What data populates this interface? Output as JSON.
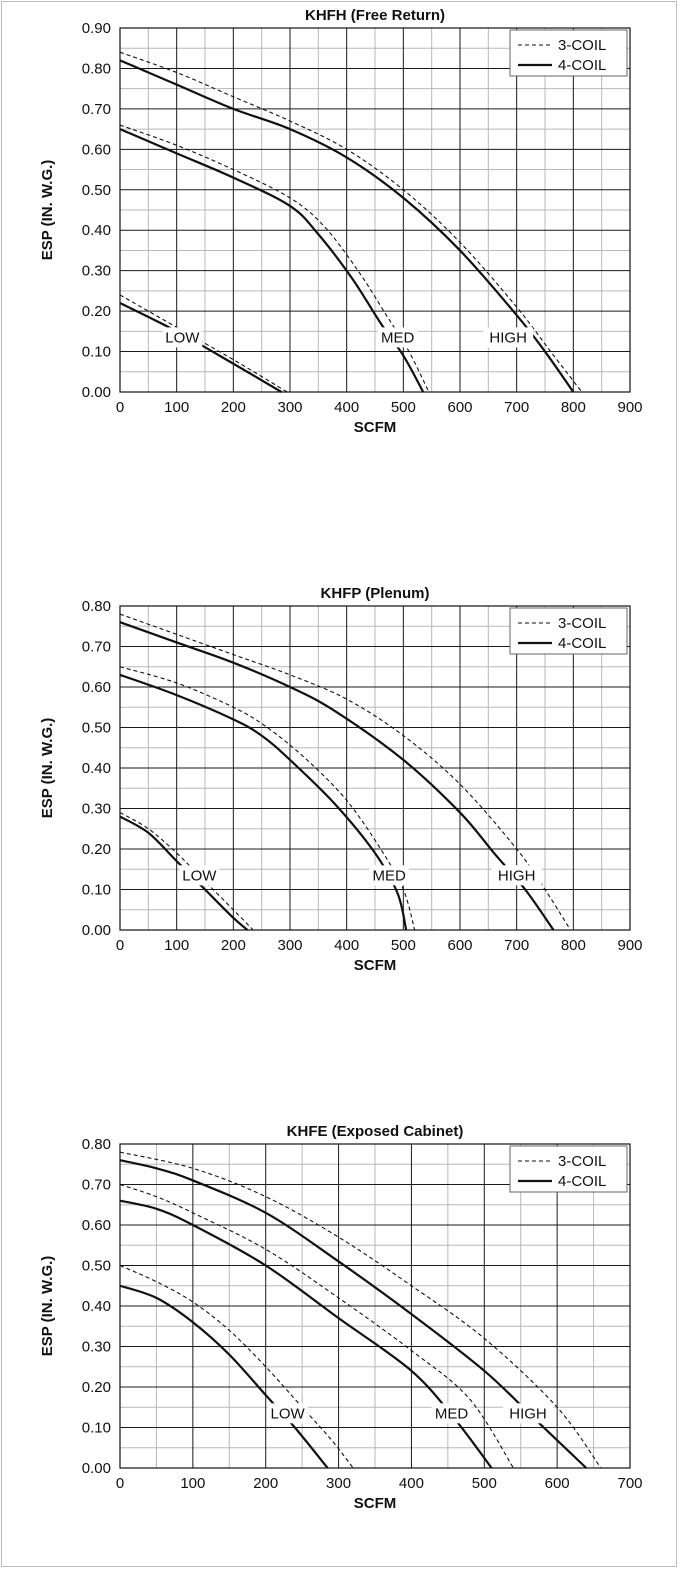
{
  "chart_data": [
    {
      "type": "line",
      "title": "KHFH (Free Return)",
      "xlabel": "SCFM",
      "ylabel": "ESP (IN. W.G.)",
      "xlim": [
        0,
        900
      ],
      "ylim": [
        0,
        0.9
      ],
      "x_ticks": [
        "0",
        "100",
        "200",
        "300",
        "400",
        "500",
        "600",
        "700",
        "800",
        "900"
      ],
      "y_ticks": [
        "0.00",
        "0.10",
        "0.20",
        "0.30",
        "0.40",
        "0.50",
        "0.60",
        "0.70",
        "0.80",
        "0.90"
      ],
      "grid": true,
      "legend": {
        "position": "top-right",
        "entries": [
          "3-COIL",
          "4-COIL"
        ]
      },
      "series": [
        {
          "name": "3-COIL",
          "speed": "HIGH",
          "x": [
            0,
            100,
            200,
            300,
            400,
            500,
            600,
            700,
            760,
            815
          ],
          "y": [
            0.84,
            0.79,
            0.73,
            0.67,
            0.6,
            0.5,
            0.37,
            0.21,
            0.1,
            0.0
          ]
        },
        {
          "name": "4-COIL",
          "speed": "HIGH",
          "x": [
            0,
            100,
            200,
            300,
            400,
            500,
            600,
            700,
            750,
            800
          ],
          "y": [
            0.82,
            0.76,
            0.7,
            0.65,
            0.58,
            0.48,
            0.35,
            0.19,
            0.1,
            0.0
          ]
        },
        {
          "name": "3-COIL",
          "speed": "MED",
          "x": [
            0,
            100,
            200,
            300,
            360,
            420,
            470,
            510,
            545
          ],
          "y": [
            0.66,
            0.61,
            0.55,
            0.48,
            0.41,
            0.3,
            0.19,
            0.1,
            0.0
          ]
        },
        {
          "name": "4-COIL",
          "speed": "MED",
          "x": [
            0,
            100,
            200,
            300,
            350,
            410,
            460,
            500,
            535
          ],
          "y": [
            0.65,
            0.59,
            0.53,
            0.46,
            0.39,
            0.28,
            0.17,
            0.09,
            0.0
          ]
        },
        {
          "name": "3-COIL",
          "speed": "LOW",
          "x": [
            0,
            100,
            200,
            295
          ],
          "y": [
            0.24,
            0.16,
            0.08,
            0.0
          ]
        },
        {
          "name": "4-COIL",
          "speed": "LOW",
          "x": [
            0,
            100,
            200,
            285
          ],
          "y": [
            0.22,
            0.15,
            0.07,
            0.0
          ]
        }
      ],
      "annotations": [
        {
          "text": "LOW",
          "x": 110,
          "y": 0.135
        },
        {
          "text": "MED",
          "x": 490,
          "y": 0.135
        },
        {
          "text": "HIGH",
          "x": 685,
          "y": 0.135
        }
      ]
    },
    {
      "type": "line",
      "title": "KHFP (Plenum)",
      "xlabel": "SCFM",
      "ylabel": "ESP (IN. W.G.)",
      "xlim": [
        0,
        900
      ],
      "ylim": [
        0,
        0.8
      ],
      "x_ticks": [
        "0",
        "100",
        "200",
        "300",
        "400",
        "500",
        "600",
        "700",
        "800",
        "900"
      ],
      "y_ticks": [
        "0.00",
        "0.10",
        "0.20",
        "0.30",
        "0.40",
        "0.50",
        "0.60",
        "0.70",
        "0.80"
      ],
      "grid": true,
      "legend": {
        "position": "top-right",
        "entries": [
          "3-COIL",
          "4-COIL"
        ]
      },
      "series": [
        {
          "name": "3-COIL",
          "speed": "HIGH",
          "x": [
            0,
            100,
            200,
            300,
            400,
            500,
            600,
            700,
            750,
            795
          ],
          "y": [
            0.78,
            0.73,
            0.68,
            0.63,
            0.57,
            0.48,
            0.36,
            0.2,
            0.1,
            0.0
          ]
        },
        {
          "name": "4-COIL",
          "speed": "HIGH",
          "x": [
            0,
            100,
            200,
            300,
            380,
            500,
            600,
            660,
            715,
            765
          ],
          "y": [
            0.76,
            0.71,
            0.66,
            0.6,
            0.54,
            0.42,
            0.29,
            0.19,
            0.1,
            0.0
          ]
        },
        {
          "name": "3-COIL",
          "speed": "MED",
          "x": [
            0,
            100,
            200,
            260,
            330,
            400,
            460,
            500,
            520
          ],
          "y": [
            0.65,
            0.61,
            0.55,
            0.5,
            0.42,
            0.32,
            0.2,
            0.1,
            0.0
          ]
        },
        {
          "name": "4-COIL",
          "speed": "MED",
          "x": [
            0,
            100,
            200,
            250,
            300,
            380,
            450,
            490,
            505
          ],
          "y": [
            0.63,
            0.58,
            0.52,
            0.48,
            0.42,
            0.31,
            0.19,
            0.09,
            0.0
          ]
        },
        {
          "name": "3-COIL",
          "speed": "LOW",
          "x": [
            0,
            50,
            100,
            150,
            200,
            235
          ],
          "y": [
            0.29,
            0.25,
            0.19,
            0.12,
            0.05,
            0.0
          ]
        },
        {
          "name": "4-COIL",
          "speed": "LOW",
          "x": [
            0,
            50,
            100,
            150,
            200,
            225
          ],
          "y": [
            0.28,
            0.24,
            0.17,
            0.1,
            0.03,
            0.0
          ]
        }
      ],
      "annotations": [
        {
          "text": "LOW",
          "x": 140,
          "y": 0.135
        },
        {
          "text": "MED",
          "x": 475,
          "y": 0.135
        },
        {
          "text": "HIGH",
          "x": 700,
          "y": 0.135
        }
      ]
    },
    {
      "type": "line",
      "title": "KHFE (Exposed Cabinet)",
      "xlabel": "SCFM",
      "ylabel": "ESP (IN. W.G.)",
      "xlim": [
        0,
        700
      ],
      "ylim": [
        0,
        0.8
      ],
      "x_ticks": [
        "0",
        "100",
        "200",
        "300",
        "400",
        "500",
        "600",
        "700"
      ],
      "y_ticks": [
        "0.00",
        "0.10",
        "0.20",
        "0.30",
        "0.40",
        "0.50",
        "0.60",
        "0.70",
        "0.80"
      ],
      "grid": true,
      "legend": {
        "position": "top-right",
        "entries": [
          "3-COIL",
          "4-COIL"
        ]
      },
      "series": [
        {
          "name": "3-COIL",
          "speed": "HIGH",
          "x": [
            0,
            100,
            200,
            300,
            400,
            500,
            600,
            660
          ],
          "y": [
            0.78,
            0.74,
            0.67,
            0.57,
            0.45,
            0.32,
            0.15,
            0.0
          ]
        },
        {
          "name": "4-COIL",
          "speed": "HIGH",
          "x": [
            0,
            50,
            100,
            200,
            300,
            400,
            500,
            570,
            640
          ],
          "y": [
            0.76,
            0.74,
            0.71,
            0.63,
            0.51,
            0.38,
            0.24,
            0.12,
            0.0
          ]
        },
        {
          "name": "3-COIL",
          "speed": "MED",
          "x": [
            0,
            50,
            100,
            200,
            300,
            400,
            480,
            540
          ],
          "y": [
            0.7,
            0.67,
            0.63,
            0.54,
            0.42,
            0.29,
            0.17,
            0.0
          ]
        },
        {
          "name": "4-COIL",
          "speed": "MED",
          "x": [
            0,
            50,
            100,
            200,
            300,
            400,
            460,
            510
          ],
          "y": [
            0.66,
            0.64,
            0.6,
            0.5,
            0.37,
            0.24,
            0.12,
            0.0
          ]
        },
        {
          "name": "3-COIL",
          "speed": "LOW",
          "x": [
            0,
            50,
            100,
            150,
            200,
            250,
            290,
            320
          ],
          "y": [
            0.5,
            0.46,
            0.41,
            0.34,
            0.25,
            0.15,
            0.07,
            0.0
          ]
        },
        {
          "name": "4-COIL",
          "speed": "LOW",
          "x": [
            0,
            50,
            100,
            150,
            200,
            240,
            285
          ],
          "y": [
            0.45,
            0.42,
            0.36,
            0.28,
            0.18,
            0.1,
            0.0
          ]
        }
      ],
      "annotations": [
        {
          "text": "LOW",
          "x": 230,
          "y": 0.135
        },
        {
          "text": "MED",
          "x": 455,
          "y": 0.135
        },
        {
          "text": "HIGH",
          "x": 560,
          "y": 0.135
        }
      ]
    }
  ]
}
